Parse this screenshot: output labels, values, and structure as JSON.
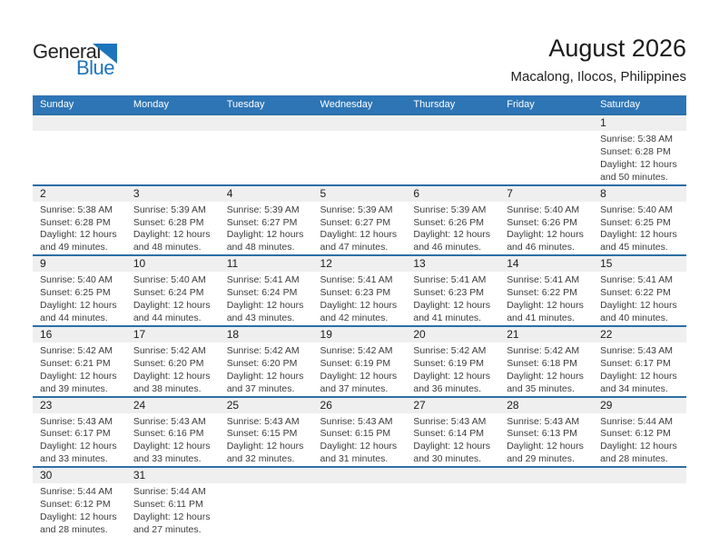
{
  "logo": {
    "part1": "General",
    "part2": "Blue"
  },
  "header": {
    "title": "August 2026",
    "subtitle": "Macalong, Ilocos, Philippines"
  },
  "colors": {
    "accent_blue": "#2E75B6",
    "week_line_blue": "#2B6FA6",
    "band_gray": "#EFEFEF",
    "logo_blue": "#1C75BC",
    "header_text": "#FFFFFF"
  },
  "calendar": {
    "weekdays": [
      "Sunday",
      "Monday",
      "Tuesday",
      "Wednesday",
      "Thursday",
      "Friday",
      "Saturday"
    ],
    "weeks": [
      [
        null,
        null,
        null,
        null,
        null,
        null,
        {
          "day": "1",
          "sunrise": "Sunrise: 5:38 AM",
          "sunset": "Sunset: 6:28 PM",
          "daylight1": "Daylight: 12 hours",
          "daylight2": "and 50 minutes."
        }
      ],
      [
        {
          "day": "2",
          "sunrise": "Sunrise: 5:38 AM",
          "sunset": "Sunset: 6:28 PM",
          "daylight1": "Daylight: 12 hours",
          "daylight2": "and 49 minutes."
        },
        {
          "day": "3",
          "sunrise": "Sunrise: 5:39 AM",
          "sunset": "Sunset: 6:28 PM",
          "daylight1": "Daylight: 12 hours",
          "daylight2": "and 48 minutes."
        },
        {
          "day": "4",
          "sunrise": "Sunrise: 5:39 AM",
          "sunset": "Sunset: 6:27 PM",
          "daylight1": "Daylight: 12 hours",
          "daylight2": "and 48 minutes."
        },
        {
          "day": "5",
          "sunrise": "Sunrise: 5:39 AM",
          "sunset": "Sunset: 6:27 PM",
          "daylight1": "Daylight: 12 hours",
          "daylight2": "and 47 minutes."
        },
        {
          "day": "6",
          "sunrise": "Sunrise: 5:39 AM",
          "sunset": "Sunset: 6:26 PM",
          "daylight1": "Daylight: 12 hours",
          "daylight2": "and 46 minutes."
        },
        {
          "day": "7",
          "sunrise": "Sunrise: 5:40 AM",
          "sunset": "Sunset: 6:26 PM",
          "daylight1": "Daylight: 12 hours",
          "daylight2": "and 46 minutes."
        },
        {
          "day": "8",
          "sunrise": "Sunrise: 5:40 AM",
          "sunset": "Sunset: 6:25 PM",
          "daylight1": "Daylight: 12 hours",
          "daylight2": "and 45 minutes."
        }
      ],
      [
        {
          "day": "9",
          "sunrise": "Sunrise: 5:40 AM",
          "sunset": "Sunset: 6:25 PM",
          "daylight1": "Daylight: 12 hours",
          "daylight2": "and 44 minutes."
        },
        {
          "day": "10",
          "sunrise": "Sunrise: 5:40 AM",
          "sunset": "Sunset: 6:24 PM",
          "daylight1": "Daylight: 12 hours",
          "daylight2": "and 44 minutes."
        },
        {
          "day": "11",
          "sunrise": "Sunrise: 5:41 AM",
          "sunset": "Sunset: 6:24 PM",
          "daylight1": "Daylight: 12 hours",
          "daylight2": "and 43 minutes."
        },
        {
          "day": "12",
          "sunrise": "Sunrise: 5:41 AM",
          "sunset": "Sunset: 6:23 PM",
          "daylight1": "Daylight: 12 hours",
          "daylight2": "and 42 minutes."
        },
        {
          "day": "13",
          "sunrise": "Sunrise: 5:41 AM",
          "sunset": "Sunset: 6:23 PM",
          "daylight1": "Daylight: 12 hours",
          "daylight2": "and 41 minutes."
        },
        {
          "day": "14",
          "sunrise": "Sunrise: 5:41 AM",
          "sunset": "Sunset: 6:22 PM",
          "daylight1": "Daylight: 12 hours",
          "daylight2": "and 41 minutes."
        },
        {
          "day": "15",
          "sunrise": "Sunrise: 5:41 AM",
          "sunset": "Sunset: 6:22 PM",
          "daylight1": "Daylight: 12 hours",
          "daylight2": "and 40 minutes."
        }
      ],
      [
        {
          "day": "16",
          "sunrise": "Sunrise: 5:42 AM",
          "sunset": "Sunset: 6:21 PM",
          "daylight1": "Daylight: 12 hours",
          "daylight2": "and 39 minutes."
        },
        {
          "day": "17",
          "sunrise": "Sunrise: 5:42 AM",
          "sunset": "Sunset: 6:20 PM",
          "daylight1": "Daylight: 12 hours",
          "daylight2": "and 38 minutes."
        },
        {
          "day": "18",
          "sunrise": "Sunrise: 5:42 AM",
          "sunset": "Sunset: 6:20 PM",
          "daylight1": "Daylight: 12 hours",
          "daylight2": "and 37 minutes."
        },
        {
          "day": "19",
          "sunrise": "Sunrise: 5:42 AM",
          "sunset": "Sunset: 6:19 PM",
          "daylight1": "Daylight: 12 hours",
          "daylight2": "and 37 minutes."
        },
        {
          "day": "20",
          "sunrise": "Sunrise: 5:42 AM",
          "sunset": "Sunset: 6:19 PM",
          "daylight1": "Daylight: 12 hours",
          "daylight2": "and 36 minutes."
        },
        {
          "day": "21",
          "sunrise": "Sunrise: 5:42 AM",
          "sunset": "Sunset: 6:18 PM",
          "daylight1": "Daylight: 12 hours",
          "daylight2": "and 35 minutes."
        },
        {
          "day": "22",
          "sunrise": "Sunrise: 5:43 AM",
          "sunset": "Sunset: 6:17 PM",
          "daylight1": "Daylight: 12 hours",
          "daylight2": "and 34 minutes."
        }
      ],
      [
        {
          "day": "23",
          "sunrise": "Sunrise: 5:43 AM",
          "sunset": "Sunset: 6:17 PM",
          "daylight1": "Daylight: 12 hours",
          "daylight2": "and 33 minutes."
        },
        {
          "day": "24",
          "sunrise": "Sunrise: 5:43 AM",
          "sunset": "Sunset: 6:16 PM",
          "daylight1": "Daylight: 12 hours",
          "daylight2": "and 33 minutes."
        },
        {
          "day": "25",
          "sunrise": "Sunrise: 5:43 AM",
          "sunset": "Sunset: 6:15 PM",
          "daylight1": "Daylight: 12 hours",
          "daylight2": "and 32 minutes."
        },
        {
          "day": "26",
          "sunrise": "Sunrise: 5:43 AM",
          "sunset": "Sunset: 6:15 PM",
          "daylight1": "Daylight: 12 hours",
          "daylight2": "and 31 minutes."
        },
        {
          "day": "27",
          "sunrise": "Sunrise: 5:43 AM",
          "sunset": "Sunset: 6:14 PM",
          "daylight1": "Daylight: 12 hours",
          "daylight2": "and 30 minutes."
        },
        {
          "day": "28",
          "sunrise": "Sunrise: 5:43 AM",
          "sunset": "Sunset: 6:13 PM",
          "daylight1": "Daylight: 12 hours",
          "daylight2": "and 29 minutes."
        },
        {
          "day": "29",
          "sunrise": "Sunrise: 5:44 AM",
          "sunset": "Sunset: 6:12 PM",
          "daylight1": "Daylight: 12 hours",
          "daylight2": "and 28 minutes."
        }
      ],
      [
        {
          "day": "30",
          "sunrise": "Sunrise: 5:44 AM",
          "sunset": "Sunset: 6:12 PM",
          "daylight1": "Daylight: 12 hours",
          "daylight2": "and 28 minutes."
        },
        {
          "day": "31",
          "sunrise": "Sunrise: 5:44 AM",
          "sunset": "Sunset: 6:11 PM",
          "daylight1": "Daylight: 12 hours",
          "daylight2": "and 27 minutes."
        },
        null,
        null,
        null,
        null,
        null
      ]
    ]
  }
}
